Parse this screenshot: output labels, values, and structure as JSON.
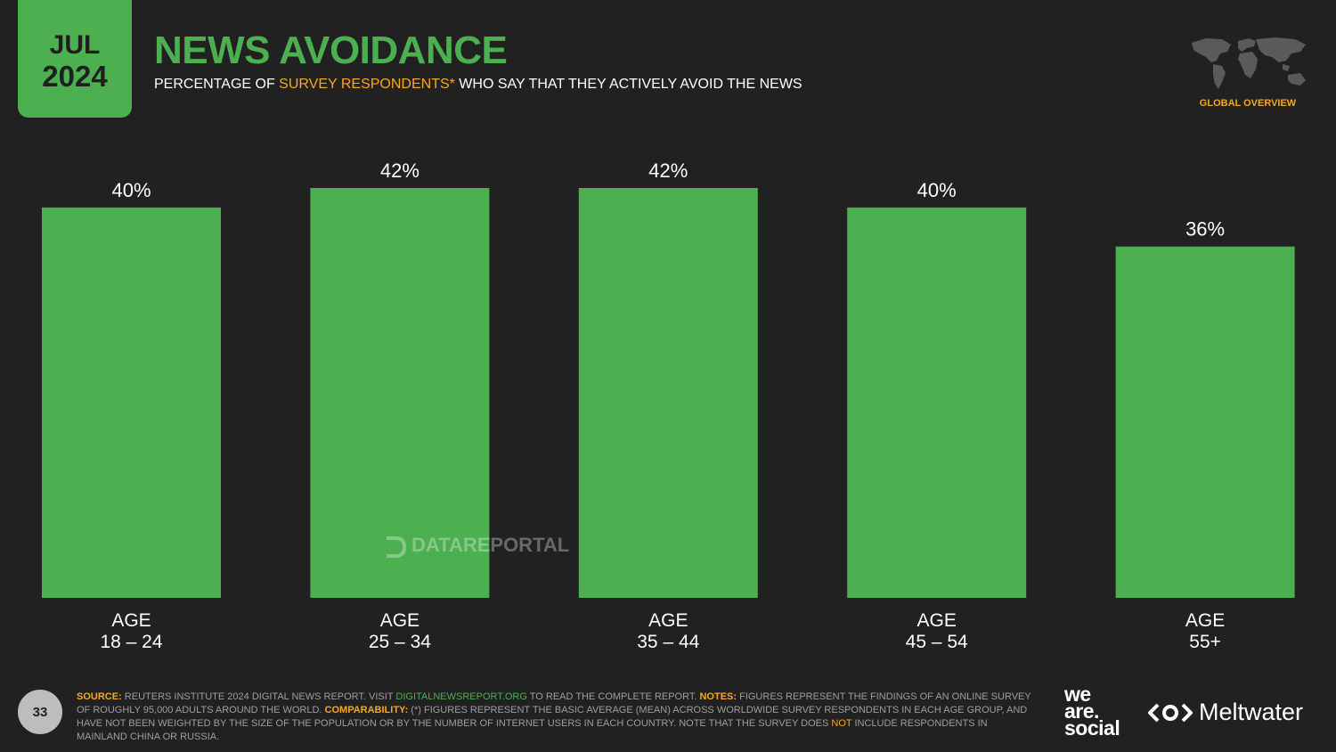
{
  "header": {
    "month": "JUL",
    "year": "2024",
    "title": "NEWS AVOIDANCE",
    "subtitle_pre": "PERCENTAGE OF ",
    "subtitle_accent": "SURVEY RESPONDENTS*",
    "subtitle_post": " WHO SAY THAT THEY ACTIVELY AVOID THE NEWS",
    "region_label": "GLOBAL OVERVIEW"
  },
  "chart_data": {
    "type": "bar",
    "categories": [
      {
        "line1": "AGE",
        "line2": "18 – 24"
      },
      {
        "line1": "AGE",
        "line2": "25 – 34"
      },
      {
        "line1": "AGE",
        "line2": "35 – 44"
      },
      {
        "line1": "AGE",
        "line2": "45 – 54"
      },
      {
        "line1": "AGE",
        "line2": "55+"
      }
    ],
    "values": [
      40,
      42,
      42,
      40,
      36
    ],
    "value_labels": [
      "40%",
      "42%",
      "42%",
      "40%",
      "36%"
    ],
    "bar_color": "#4caf50",
    "ylim": [
      0,
      42
    ],
    "grid": false,
    "legend": "none"
  },
  "watermark": "DATAREPORTAL",
  "footer": {
    "page_number": "33",
    "source_label": "SOURCE:",
    "source_text": " REUTERS INSTITUTE 2024 DIGITAL NEWS REPORT. VISIT ",
    "source_link": "DIGITALNEWSREPORT.ORG",
    "source_text2": " TO READ THE COMPLETE REPORT. ",
    "notes_label": "NOTES:",
    "notes_text": " FIGURES REPRESENT THE FINDINGS OF AN ONLINE SURVEY OF ROUGHLY 95,000 ADULTS AROUND THE WORLD. ",
    "comparability_label": "COMPARABILITY:",
    "comparability_text": " (*) FIGURES REPRESENT THE BASIC AVERAGE (MEAN) ACROSS WORLDWIDE SURVEY RESPONDENTS IN EACH AGE GROUP, AND HAVE NOT BEEN WEIGHTED BY THE SIZE OF THE POPULATION OR BY THE NUMBER OF INTERNET USERS IN EACH COUNTRY. NOTE THAT THE SURVEY DOES ",
    "not_word": "NOT",
    "comparability_tail": " INCLUDE RESPONDENTS IN MAINLAND CHINA OR RUSSIA.",
    "brand1_l1": "we",
    "brand1_l2": "are.",
    "brand1_l3": "social",
    "brand2": "Meltwater"
  },
  "colors": {
    "background": "#212121",
    "green": "#4caf50",
    "orange": "#f7a823"
  }
}
